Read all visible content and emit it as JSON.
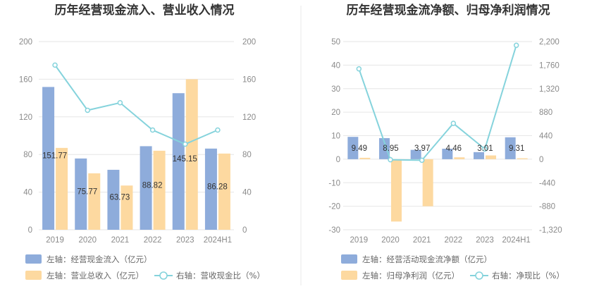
{
  "colors": {
    "blue": "#8eacdb",
    "orange": "#fdd9a0",
    "line": "#85d3dc",
    "grid": "#e6e6e6",
    "divider": "#e8e8e8"
  },
  "chart_data": [
    {
      "type": "bar",
      "title": "历年经营现金流入、营业收入情况",
      "categories": [
        "2019",
        "2020",
        "2021",
        "2022",
        "2023",
        "2024H1"
      ],
      "left_axis": {
        "ticks": [
          "0",
          "40",
          "80",
          "120",
          "160",
          "200"
        ],
        "ylim": [
          0,
          200
        ]
      },
      "right_axis": {
        "ticks": [
          "0",
          "40",
          "80",
          "120",
          "160",
          "200"
        ],
        "ylim": [
          0,
          200
        ]
      },
      "series": [
        {
          "name": "左轴：经营现金流入（亿元）",
          "kind": "bar",
          "axis": "left",
          "values": [
            151.77,
            75.77,
            63.73,
            88.82,
            145.15,
            86.28
          ],
          "labels": [
            "151.77",
            "75.77",
            "63.73",
            "88.82",
            "145.15",
            "86.28"
          ]
        },
        {
          "name": "左轴：营业总收入（亿元）",
          "kind": "bar",
          "axis": "left",
          "values": [
            87,
            60,
            47,
            84,
            160,
            81
          ]
        },
        {
          "name": "右轴：营收现金比（%）",
          "kind": "line",
          "axis": "right",
          "values": [
            175,
            127,
            135,
            106,
            91,
            106
          ]
        }
      ],
      "legend": "bottom-left"
    },
    {
      "type": "bar",
      "title": "历年经营现金流净额、归母净利润情况",
      "categories": [
        "2019",
        "2020",
        "2021",
        "2022",
        "2023",
        "2024H1"
      ],
      "left_axis": {
        "ticks": [
          "-30",
          "-20",
          "-10",
          "0",
          "10",
          "20",
          "30",
          "40",
          "50"
        ],
        "ylim": [
          -30,
          50
        ]
      },
      "right_axis": {
        "ticks": [
          "-1,320",
          "-880",
          "-440",
          "0",
          "440",
          "880",
          "1,320",
          "1,760",
          "2,200"
        ],
        "ylim": [
          -1320,
          2200
        ]
      },
      "series": [
        {
          "name": "左轴：经营活动现金流净额（亿元）",
          "kind": "bar",
          "axis": "left",
          "values": [
            9.49,
            8.95,
            3.97,
            4.46,
            3.01,
            9.31
          ],
          "labels": [
            "9.49",
            "8.95",
            "3.97",
            "4.46",
            "3.01",
            "9.31"
          ]
        },
        {
          "name": "左轴：归母净利润（亿元）",
          "kind": "bar",
          "axis": "left",
          "values": [
            0.6,
            -26.5,
            -20,
            0.8,
            1.6,
            0.4
          ]
        },
        {
          "name": "右轴：净现比（%）",
          "kind": "line",
          "axis": "right",
          "values": [
            1690,
            -10,
            -20,
            670,
            190,
            2130
          ]
        }
      ],
      "legend": "bottom-left"
    }
  ]
}
